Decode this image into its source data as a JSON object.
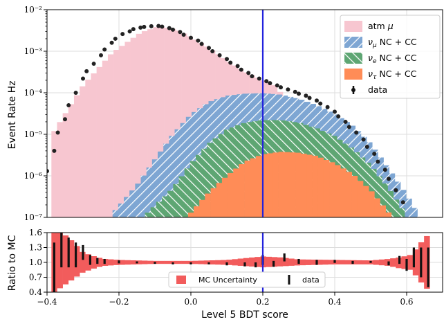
{
  "chart_data": [
    {
      "type": "bar",
      "panel": "main",
      "ylabel": "Event Rate Hz",
      "yscale": "log",
      "ylim": [
        1e-07,
        0.01
      ],
      "xlim": [
        -0.4,
        0.7
      ],
      "yticks": [
        "10⁻²",
        "10⁻³",
        "10⁻⁴",
        "10⁻⁵",
        "10⁻⁶",
        "10⁻⁷"
      ],
      "grid": true,
      "legend_position": "top-right",
      "cut_line_x": 0.2,
      "bin_width": 0.0157,
      "series": [
        {
          "name": "atm μ",
          "style": "filled",
          "color": "#f7c6d0",
          "points": [
            [
              -0.38,
              1.2e-05
            ],
            [
              -0.3,
              0.00015
            ],
            [
              -0.22,
              0.0009
            ],
            [
              -0.14,
              0.0028
            ],
            [
              -0.09,
              0.004
            ],
            [
              -0.04,
              0.0033
            ],
            [
              0.0,
              0.0022
            ],
            [
              0.05,
              0.0012
            ],
            [
              0.1,
              0.0006
            ],
            [
              0.15,
              0.00032
            ],
            [
              0.2,
              0.0002
            ],
            [
              0.23,
              0.00016
            ],
            [
              0.25,
              0.0001
            ]
          ]
        },
        {
          "name": "ν_μ NC + CC",
          "style": "hatched",
          "color": "#7ea6d3",
          "points": [
            [
              -0.21,
              1.5e-07
            ],
            [
              -0.15,
              6e-07
            ],
            [
              -0.1,
              2.5e-06
            ],
            [
              -0.05,
              1e-05
            ],
            [
              0.0,
              3e-05
            ],
            [
              0.05,
              6e-05
            ],
            [
              0.1,
              8.5e-05
            ],
            [
              0.15,
              9.5e-05
            ],
            [
              0.2,
              9.8e-05
            ],
            [
              0.25,
              9e-05
            ],
            [
              0.3,
              7.2e-05
            ],
            [
              0.35,
              5e-05
            ],
            [
              0.4,
              3.1e-05
            ],
            [
              0.45,
              1.6e-05
            ],
            [
              0.5,
              6e-06
            ],
            [
              0.55,
              1.5e-06
            ],
            [
              0.6,
              3.5e-07
            ],
            [
              0.63,
              1.3e-07
            ]
          ]
        },
        {
          "name": "ν_e NC + CC",
          "style": "hatched",
          "color": "#5ea673",
          "points": [
            [
              -0.12,
              1.3e-07
            ],
            [
              -0.05,
              5e-07
            ],
            [
              0.0,
              2e-06
            ],
            [
              0.05,
              6e-06
            ],
            [
              0.1,
              1.3e-05
            ],
            [
              0.15,
              1.9e-05
            ],
            [
              0.2,
              2.2e-05
            ],
            [
              0.25,
              2.2e-05
            ],
            [
              0.3,
              1.9e-05
            ],
            [
              0.35,
              1.4e-05
            ],
            [
              0.4,
              9e-06
            ],
            [
              0.45,
              4.5e-06
            ],
            [
              0.5,
              1.8e-06
            ],
            [
              0.55,
              5e-07
            ],
            [
              0.59,
              1.5e-07
            ]
          ]
        },
        {
          "name": "ν_τ NC + CC",
          "style": "filled",
          "color": "#ff8c57",
          "points": [
            [
              0.0,
              1.3e-07
            ],
            [
              0.05,
              4e-07
            ],
            [
              0.1,
              1e-06
            ],
            [
              0.15,
              2.2e-06
            ],
            [
              0.2,
              3.3e-06
            ],
            [
              0.25,
              3.8e-06
            ],
            [
              0.3,
              3.6e-06
            ],
            [
              0.35,
              3e-06
            ],
            [
              0.4,
              2e-06
            ],
            [
              0.45,
              1.1e-06
            ],
            [
              0.5,
              4.5e-07
            ],
            [
              0.55,
              1.3e-07
            ]
          ]
        },
        {
          "name": "data",
          "style": "points",
          "color": "#222222",
          "points": [
            [
              -0.4,
              1.3e-06
            ],
            [
              -0.38,
              4e-06
            ],
            [
              -0.37,
              1.1e-05
            ],
            [
              -0.35,
              2.3e-05
            ],
            [
              -0.34,
              5e-05
            ],
            [
              -0.32,
              0.0001
            ],
            [
              -0.3,
              0.00022
            ],
            [
              -0.29,
              0.00033
            ],
            [
              -0.27,
              0.0005
            ],
            [
              -0.25,
              0.0008
            ],
            [
              -0.24,
              0.0011
            ],
            [
              -0.22,
              0.0016
            ],
            [
              -0.21,
              0.002
            ],
            [
              -0.19,
              0.0026
            ],
            [
              -0.17,
              0.003
            ],
            [
              -0.16,
              0.0034
            ],
            [
              -0.14,
              0.0037
            ],
            [
              -0.13,
              0.00385
            ],
            [
              -0.11,
              0.004
            ],
            [
              -0.09,
              0.00405
            ],
            [
              -0.08,
              0.0039
            ],
            [
              -0.06,
              0.0036
            ],
            [
              -0.05,
              0.0033
            ],
            [
              -0.03,
              0.0029
            ],
            [
              -0.02,
              0.0025
            ],
            [
              0.0,
              0.0021
            ],
            [
              0.02,
              0.0018
            ],
            [
              0.03,
              0.0015
            ],
            [
              0.05,
              0.0012
            ],
            [
              0.06,
              0.001
            ],
            [
              0.08,
              0.0008
            ],
            [
              0.1,
              0.00065
            ],
            [
              0.11,
              0.00053
            ],
            [
              0.13,
              0.00044
            ],
            [
              0.14,
              0.00036
            ],
            [
              0.16,
              0.0003
            ],
            [
              0.17,
              0.00025
            ],
            [
              0.19,
              0.00022
            ],
            [
              0.21,
              0.00019
            ],
            [
              0.22,
              0.00017
            ],
            [
              0.24,
              0.00015
            ],
            [
              0.25,
              0.000135
            ],
            [
              0.27,
              0.00012
            ],
            [
              0.29,
              0.000105
            ],
            [
              0.3,
              9.5e-05
            ],
            [
              0.32,
              8.5e-05
            ],
            [
              0.33,
              7.5e-05
            ],
            [
              0.35,
              6.5e-05
            ],
            [
              0.36,
              5.5e-05
            ],
            [
              0.38,
              4.5e-05
            ],
            [
              0.4,
              3.5e-05
            ],
            [
              0.41,
              2.7e-05
            ],
            [
              0.43,
              2e-05
            ],
            [
              0.44,
              1.5e-05
            ],
            [
              0.46,
              1.1e-05
            ],
            [
              0.48,
              7.5e-06
            ],
            [
              0.49,
              5e-06
            ],
            [
              0.51,
              3.4e-06
            ],
            [
              0.52,
              2.2e-06
            ],
            [
              0.54,
              1.4e-06
            ],
            [
              0.55,
              8.5e-07
            ],
            [
              0.57,
              4.5e-07
            ],
            [
              0.59,
              2.3e-07
            ]
          ]
        }
      ]
    },
    {
      "type": "bar",
      "panel": "ratio",
      "xlabel": "Level 5 BDT score",
      "ylabel": "Ratio to MC",
      "ylim": [
        0.4,
        1.6
      ],
      "yticks": [
        "1.6",
        "1.3",
        "1.0",
        "0.7",
        "0.4"
      ],
      "xticks": [
        "−0.4",
        "−0.2",
        "0.0",
        "0.2",
        "0.4",
        "0.6"
      ],
      "legend_position": "bottom-center",
      "series": [
        {
          "name": "MC Uncertainty",
          "style": "band",
          "color": "#f25c5c",
          "points": [
            [
              -0.38,
              0.4,
              1.6
            ],
            [
              -0.36,
              0.5,
              1.6
            ],
            [
              -0.34,
              0.6,
              1.5
            ],
            [
              -0.32,
              0.7,
              1.35
            ],
            [
              -0.3,
              0.8,
              1.2
            ],
            [
              -0.28,
              0.85,
              1.15
            ],
            [
              -0.26,
              0.9,
              1.1
            ],
            [
              -0.24,
              0.93,
              1.07
            ],
            [
              -0.2,
              0.95,
              1.05
            ],
            [
              -0.1,
              0.97,
              1.03
            ],
            [
              0.0,
              0.97,
              1.03
            ],
            [
              0.1,
              0.95,
              1.05
            ],
            [
              0.2,
              0.9,
              1.12
            ],
            [
              0.25,
              0.92,
              1.1
            ],
            [
              0.3,
              0.94,
              1.06
            ],
            [
              0.4,
              0.96,
              1.05
            ],
            [
              0.5,
              0.96,
              1.04
            ],
            [
              0.55,
              0.93,
              1.07
            ],
            [
              0.58,
              0.88,
              1.1
            ],
            [
              0.61,
              0.85,
              1.15
            ],
            [
              0.63,
              0.7,
              1.3
            ],
            [
              0.65,
              0.5,
              1.5
            ],
            [
              0.67,
              0.4,
              1.6
            ]
          ]
        },
        {
          "name": "data",
          "style": "errorbar",
          "color": "#111111",
          "points": [
            [
              -0.38,
              0.9,
              0.5
            ],
            [
              -0.36,
              1.3,
              0.4
            ],
            [
              -0.34,
              1.2,
              0.3
            ],
            [
              -0.32,
              1.15,
              0.25
            ],
            [
              -0.3,
              1.2,
              0.15
            ],
            [
              -0.28,
              1.05,
              0.1
            ],
            [
              -0.26,
              1.03,
              0.06
            ],
            [
              -0.24,
              1.02,
              0.05
            ],
            [
              -0.2,
              1.01,
              0.03
            ],
            [
              -0.15,
              1.0,
              0.02
            ],
            [
              -0.1,
              0.99,
              0.02
            ],
            [
              -0.05,
              0.98,
              0.02
            ],
            [
              0.0,
              0.98,
              0.02
            ],
            [
              0.05,
              0.98,
              0.02
            ],
            [
              0.1,
              0.97,
              0.03
            ],
            [
              0.15,
              0.96,
              0.04
            ],
            [
              0.18,
              0.95,
              0.05
            ],
            [
              0.2,
              1.05,
              0.1
            ],
            [
              0.23,
              0.97,
              0.06
            ],
            [
              0.26,
              1.1,
              0.08
            ],
            [
              0.3,
              1.02,
              0.05
            ],
            [
              0.35,
              1.0,
              0.05
            ],
            [
              0.4,
              1.02,
              0.03
            ],
            [
              0.45,
              1.0,
              0.03
            ],
            [
              0.5,
              1.01,
              0.02
            ],
            [
              0.55,
              0.98,
              0.04
            ],
            [
              0.58,
              1.05,
              0.08
            ],
            [
              0.6,
              0.95,
              0.12
            ],
            [
              0.62,
              1.1,
              0.2
            ],
            [
              0.64,
              1.0,
              0.3
            ],
            [
              0.66,
              0.9,
              0.4
            ]
          ]
        }
      ]
    }
  ]
}
